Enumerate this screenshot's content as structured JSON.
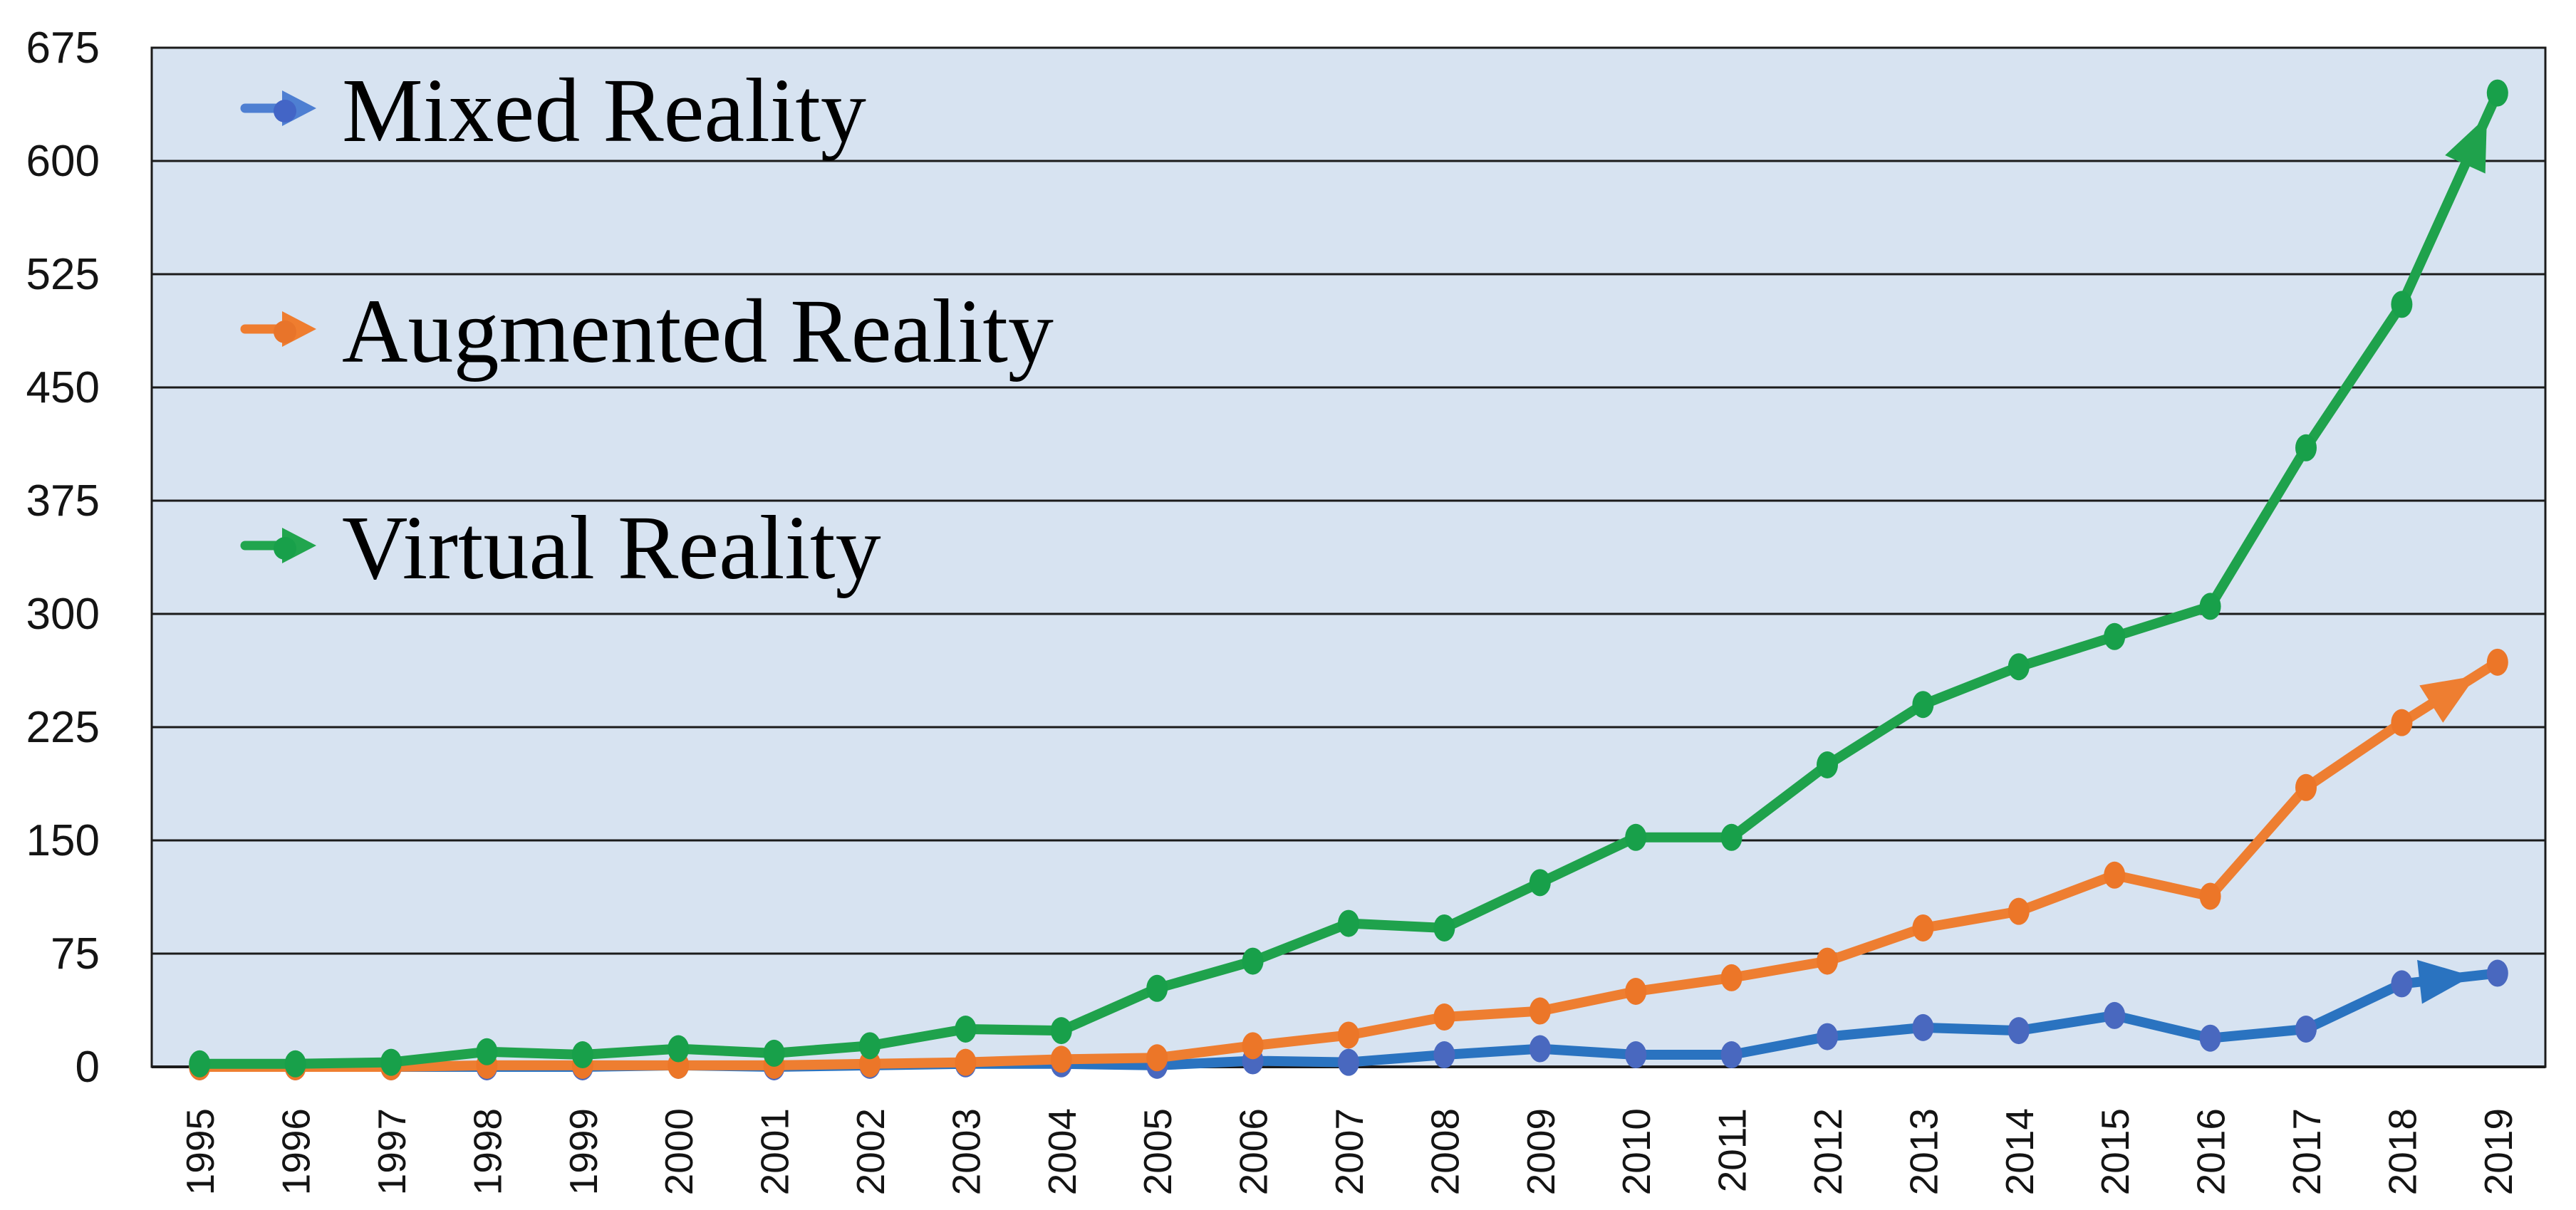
{
  "chart_data": {
    "type": "line",
    "title": "",
    "xlabel": "",
    "ylabel": "",
    "categories": [
      "1995",
      "1996",
      "1997",
      "1998",
      "1999",
      "2000",
      "2001",
      "2002",
      "2003",
      "2004",
      "2005",
      "2006",
      "2007",
      "2008",
      "2009",
      "2010",
      "2011",
      "2012",
      "2013",
      "2014",
      "2015",
      "2016",
      "2017",
      "2018",
      "2019"
    ],
    "yticks": [
      0,
      75,
      150,
      225,
      300,
      375,
      450,
      525,
      600,
      675
    ],
    "ylim": [
      0,
      675
    ],
    "grid": true,
    "legend_position": "top-left",
    "plot_background": "#d7e3f1",
    "grid_color": "#1b1b1b",
    "axis_text_color": "#141414",
    "end_arrows": true,
    "series": [
      {
        "name": "Mixed Reality",
        "line_color": "#2a73c0",
        "marker_color": "#4968bf",
        "legend_arrow_color": "#4e7fd2",
        "legend_dot_color": "#4365c6",
        "values": [
          0,
          0,
          0,
          0,
          0,
          1,
          0,
          1,
          2,
          2,
          1,
          4,
          3,
          8,
          12,
          8,
          8,
          20,
          26,
          24,
          34,
          19,
          25,
          55,
          62
        ]
      },
      {
        "name": "Augmented Reality",
        "line_color": "#ee7e31",
        "marker_color": "#ec7628",
        "legend_arrow_color": "#ef7d2f",
        "legend_dot_color": "#e8742a",
        "values": [
          0,
          0,
          0,
          1,
          1,
          1,
          1,
          2,
          3,
          5,
          6,
          14,
          21,
          33,
          37,
          50,
          59,
          70,
          92,
          103,
          127,
          113,
          185,
          228,
          268
        ]
      },
      {
        "name": "Virtual Reality",
        "line_color": "#1fa24c",
        "marker_color": "#18a04a",
        "legend_arrow_color": "#21a54e",
        "legend_dot_color": "#18a04a",
        "values": [
          2,
          2,
          3,
          10,
          8,
          12,
          9,
          14,
          25,
          24,
          52,
          70,
          95,
          92,
          122,
          152,
          152,
          200,
          240,
          265,
          285,
          305,
          410,
          505,
          645
        ]
      }
    ]
  }
}
